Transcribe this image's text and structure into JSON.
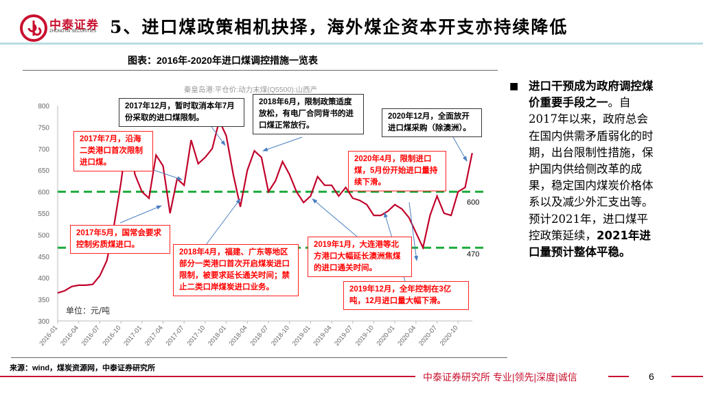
{
  "header": {
    "brand_cn": "中泰证券",
    "brand_en": "ZHONGTAI SECURITIES",
    "title": "5、进口煤政策相机抉择，海外煤企资本开支亦持续降低"
  },
  "figure": {
    "caption": "图表：2016年-2020年进口煤调控措施一览表",
    "source": "来源：wind，煤炭资源网，中泰证券研究所"
  },
  "chart_data": {
    "type": "line",
    "title": "秦皇岛港:平仓价:动力末煤(Q5500):山西产",
    "unit_label": "单位：元/吨",
    "ylim": [
      300,
      800
    ],
    "yticks": [
      "300",
      "350",
      "400",
      "450",
      "500",
      "550",
      "600",
      "650",
      "700",
      "750",
      "800"
    ],
    "xticks": [
      "2016-01",
      "2016-04",
      "2016-07",
      "2016-10",
      "2017-01",
      "2017-04",
      "2017-07",
      "2017-10",
      "2018-01",
      "2018-04",
      "2018-07",
      "2018-10",
      "2019-01",
      "2019-04",
      "2019-07",
      "2019-10",
      "2020-01",
      "2020-04",
      "2020-07",
      "2020-10"
    ],
    "series": [
      {
        "color": "#c0002a",
        "x": [
          "2016-01",
          "2016-02",
          "2016-03",
          "2016-04",
          "2016-05",
          "2016-06",
          "2016-07",
          "2016-08",
          "2016-09",
          "2016-10",
          "2016-11",
          "2016-12",
          "2017-01",
          "2017-02",
          "2017-03",
          "2017-04",
          "2017-05",
          "2017-06",
          "2017-07",
          "2017-08",
          "2017-09",
          "2017-10",
          "2017-11",
          "2017-12",
          "2018-01",
          "2018-02",
          "2018-03",
          "2018-04",
          "2018-05",
          "2018-06",
          "2018-07",
          "2018-08",
          "2018-09",
          "2018-10",
          "2018-11",
          "2018-12",
          "2019-01",
          "2019-02",
          "2019-03",
          "2019-04",
          "2019-05",
          "2019-06",
          "2019-07",
          "2019-08",
          "2019-09",
          "2019-10",
          "2019-11",
          "2019-12",
          "2020-01",
          "2020-02",
          "2020-03",
          "2020-04",
          "2020-05",
          "2020-06",
          "2020-07",
          "2020-08",
          "2020-09",
          "2020-10",
          "2020-11",
          "2020-12"
        ],
        "values": [
          365,
          370,
          380,
          383,
          383,
          385,
          405,
          440,
          520,
          620,
          740,
          640,
          600,
          585,
          685,
          660,
          550,
          630,
          615,
          720,
          665,
          680,
          700,
          765,
          730,
          640,
          565,
          650,
          695,
          680,
          600,
          625,
          670,
          640,
          600,
          575,
          590,
          635,
          615,
          615,
          590,
          610,
          585,
          580,
          570,
          545,
          545,
          555,
          570,
          560,
          540,
          505,
          470,
          545,
          590,
          550,
          545,
          600,
          610,
          690
        ]
      }
    ],
    "reference_lines": [
      {
        "value": 600,
        "label": "600",
        "color": "#1aaa3a"
      },
      {
        "value": 470,
        "label": "470",
        "color": "#1aaa3a"
      }
    ],
    "annotations": [
      {
        "text": "2017年7月，沿海二类港口首次限制进口煤。",
        "style": "red"
      },
      {
        "text": "2017年12月，暂时取消本年7月份采取的进口煤限制。",
        "style": "black"
      },
      {
        "text": "2018年6月，限制政策适度放松，有电厂合同背书的进口煤正常放行。",
        "style": "black"
      },
      {
        "text": "2020年12月，全面放开进口煤采购（除澳洲）。",
        "style": "black"
      },
      {
        "text": "2020年4月，限制进口煤，5月份开始进口量持续下滑。",
        "style": "red"
      },
      {
        "text": "2017年5月，国常会要求控制劣质煤进口。",
        "style": "red"
      },
      {
        "text": "2018年4月，福建、广东等地区部分一类港口首次开启煤炭进口限制，被要求延长通关时间；禁止二类口岸煤炭进口业务。",
        "style": "red"
      },
      {
        "text": "2019年1月，大连港等北方港口大幅延长澳洲焦煤的进口通关时间。",
        "style": "red"
      },
      {
        "text": "2019年12月，全年控制在3亿吨，12月进口量大幅下滑。",
        "style": "red"
      }
    ]
  },
  "sidebar": {
    "bold_lead": "进口干预成为政府调控煤价重要手段之一",
    "body": "。自2017年以来，政府总会在国内供需矛盾弱化的时期，出台限制性措施，保护国内供给侧改革的成果，稳定国内煤炭价格体系以及减少外汇支出等。预计2021年，进口煤平控政策延续，",
    "bold_tail": "2021年进口量预计整体平稳。"
  },
  "footer": {
    "text": "中泰证券研究所 专业|领先|深度|诚信",
    "page": "6"
  },
  "colors": {
    "brand": "#c8102e",
    "line": "#c0002a",
    "ref": "#1aaa3a",
    "teal": "#b7dde2"
  }
}
